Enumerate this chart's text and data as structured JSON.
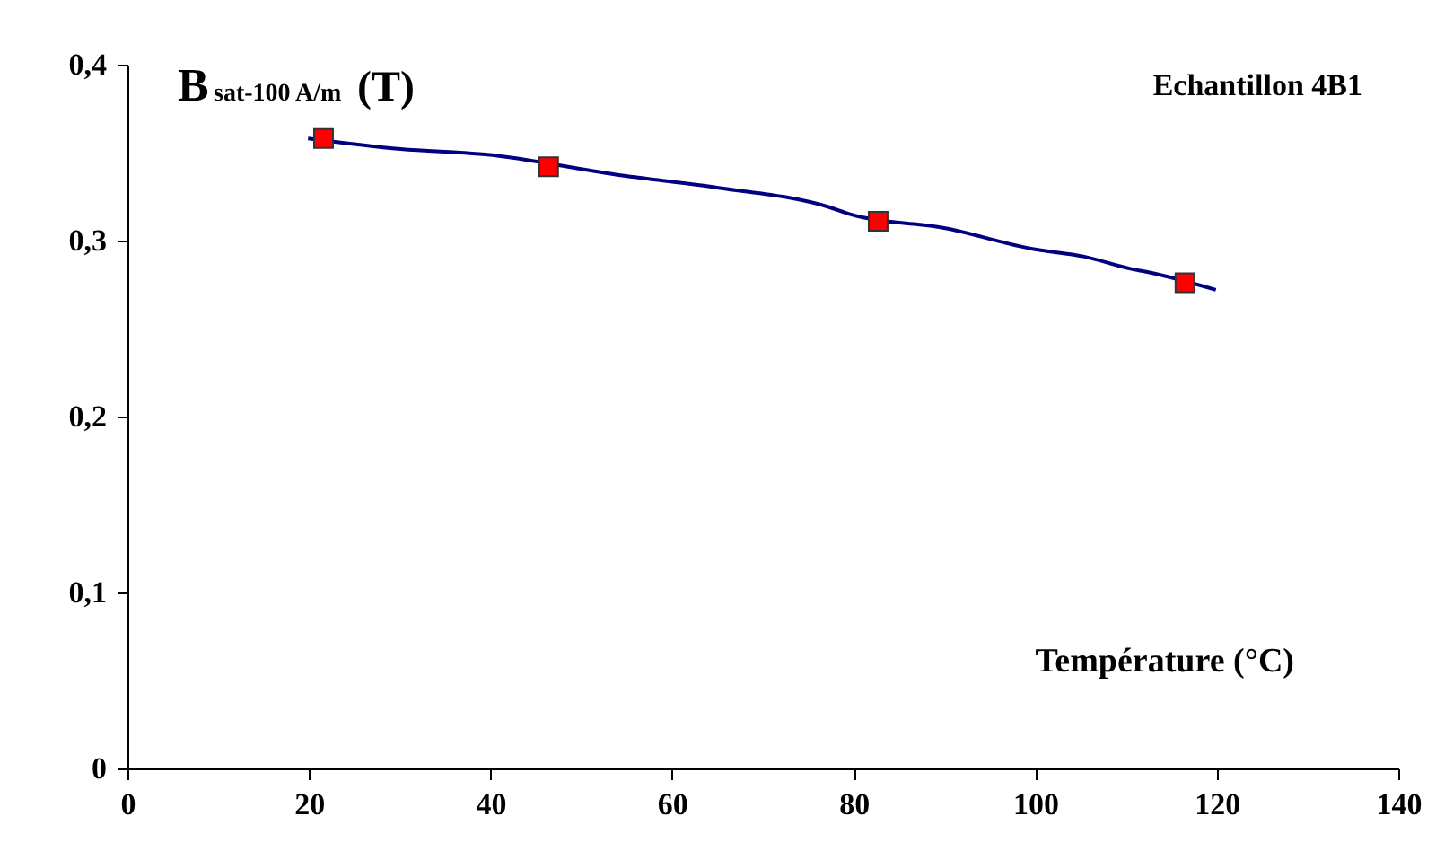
{
  "chart_data": {
    "type": "line",
    "title": "Echantillon 4B1",
    "xlabel": "Température (°C)",
    "ylabel": "B$_{sat-100 A/m}$ (T)",
    "xlim": [
      0,
      140
    ],
    "xticks": [
      0,
      20,
      40,
      60,
      80,
      100,
      120,
      140
    ],
    "ylim": [
      0,
      0.4
    ],
    "yticks": [
      0,
      {
        "value": 0.1,
        "label": "0,1"
      },
      {
        "value": 0.2,
        "label": "0,2"
      },
      {
        "value": 0.3,
        "label": "0,3"
      },
      {
        "value": 0.4,
        "label": "0,4"
      }
    ],
    "grid": false,
    "series": [
      {
        "color": "#000080",
        "marker": "none",
        "line_style": "solid",
        "x": [
          19.9,
          30.1,
          39.4,
          54.5,
          65.1,
          77.3,
          79.6,
          90.1,
          100,
          105.3,
          110.5,
          112.5,
          119.9
        ],
        "values": [
          0.358,
          0.352,
          0.349,
          0.337,
          0.33,
          0.319,
          0.315,
          0.307,
          0.295,
          0.291,
          0.284,
          0.282,
          0.272
        ]
      },
      {
        "type": "scatter",
        "color": "#ff0000",
        "marker": "square",
        "x": [
          21.6,
          46.4,
          82.7,
          116.5
        ],
        "values": [
          0.358,
          0.342,
          0.311,
          0.276
        ]
      }
    ]
  }
}
